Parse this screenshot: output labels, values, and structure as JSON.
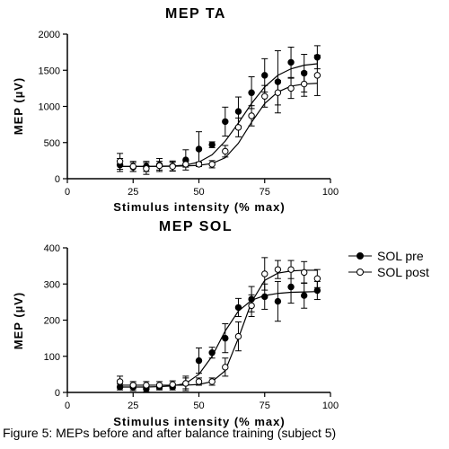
{
  "caption": "Figure 5: MEPs before and after balance training (subject 5)",
  "legend": {
    "pre": "SOL pre",
    "post": "SOL post"
  },
  "chart_data": [
    {
      "type": "line",
      "title": "MEP TA",
      "xlabel": "Stimulus intensity (% max)",
      "ylabel": "MEP (µV)",
      "xlim": [
        0,
        100
      ],
      "ylim": [
        0,
        2000
      ],
      "xticks": [
        0,
        25,
        50,
        75,
        100
      ],
      "yticks": [
        0,
        500,
        1000,
        1500,
        2000
      ],
      "x": [
        20,
        25,
        30,
        35,
        40,
        45,
        50,
        55,
        60,
        65,
        70,
        75,
        80,
        85,
        90,
        95
      ],
      "series": [
        {
          "name": "pre",
          "marker": "filled",
          "values": [
            190,
            160,
            170,
            190,
            175,
            260,
            410,
            470,
            790,
            930,
            1190,
            1430,
            1340,
            1610,
            1460,
            1680
          ],
          "errors": [
            90,
            60,
            70,
            90,
            70,
            140,
            240,
            40,
            200,
            200,
            220,
            230,
            430,
            210,
            260,
            160
          ],
          "fit": [
            170,
            170,
            170,
            172,
            176,
            188,
            230,
            330,
            520,
            770,
            1040,
            1270,
            1430,
            1520,
            1570,
            1590
          ]
        },
        {
          "name": "post",
          "marker": "open",
          "values": [
            240,
            170,
            140,
            180,
            170,
            200,
            200,
            200,
            380,
            710,
            870,
            1140,
            1190,
            1250,
            1310,
            1430
          ],
          "errors": [
            110,
            70,
            80,
            60,
            60,
            40,
            30,
            50,
            80,
            130,
            140,
            150,
            170,
            140,
            170,
            280
          ],
          "fit": [
            170,
            170,
            170,
            170,
            172,
            176,
            185,
            210,
            290,
            490,
            780,
            1040,
            1200,
            1280,
            1310,
            1320
          ]
        }
      ]
    },
    {
      "type": "line",
      "title": "MEP SOL",
      "xlabel": "Stimulus intensity (% max)",
      "ylabel": "MEP (µV)",
      "xlim": [
        0,
        100
      ],
      "ylim": [
        0,
        400
      ],
      "xticks": [
        0,
        25,
        50,
        75,
        100
      ],
      "yticks": [
        0,
        100,
        200,
        300,
        400
      ],
      "x": [
        20,
        25,
        30,
        35,
        40,
        45,
        50,
        55,
        60,
        65,
        70,
        75,
        80,
        85,
        90,
        95
      ],
      "series": [
        {
          "name": "SOL pre",
          "marker": "filled",
          "values": [
            15,
            15,
            10,
            15,
            15,
            25,
            88,
            110,
            150,
            235,
            258,
            265,
            252,
            292,
            268,
            282
          ],
          "errors": [
            8,
            10,
            8,
            8,
            8,
            20,
            35,
            15,
            40,
            25,
            35,
            35,
            55,
            45,
            35,
            25
          ],
          "fit": [
            15,
            15,
            15,
            16,
            18,
            25,
            50,
            100,
            170,
            225,
            255,
            268,
            274,
            277,
            278,
            279
          ]
        },
        {
          "name": "SOL post",
          "marker": "open",
          "values": [
            30,
            20,
            20,
            20,
            22,
            25,
            30,
            30,
            70,
            155,
            240,
            328,
            340,
            340,
            332,
            315
          ],
          "errors": [
            15,
            10,
            10,
            10,
            10,
            15,
            10,
            10,
            25,
            40,
            30,
            45,
            25,
            25,
            30,
            25
          ],
          "fit": [
            20,
            20,
            20,
            20,
            20,
            20,
            22,
            30,
            60,
            150,
            250,
            310,
            330,
            336,
            338,
            338
          ]
        }
      ]
    }
  ]
}
